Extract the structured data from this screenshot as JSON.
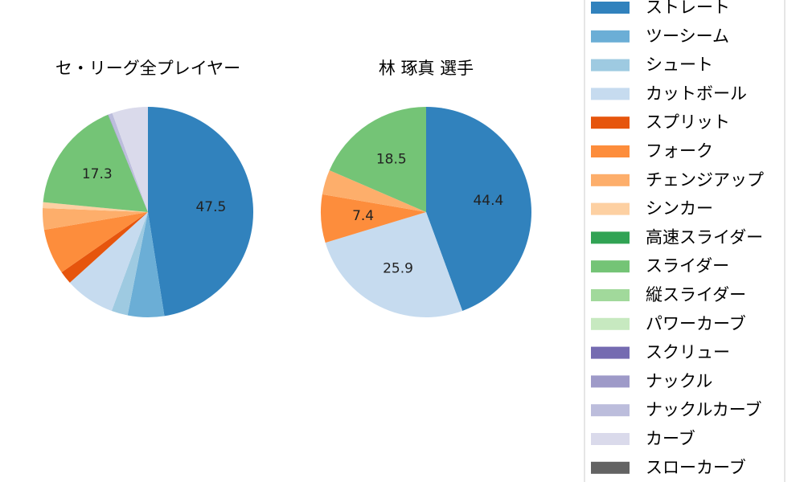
{
  "chart_data": {
    "type": "pie",
    "legend": {
      "placement": "right",
      "entries": [
        {
          "name": "ストレート",
          "color": "#3182bd"
        },
        {
          "name": "ツーシーム",
          "color": "#6baed6"
        },
        {
          "name": "シュート",
          "color": "#9ecae1"
        },
        {
          "name": "カットボール",
          "color": "#c6dbef"
        },
        {
          "name": "スプリット",
          "color": "#e6550d"
        },
        {
          "name": "フォーク",
          "color": "#fd8d3c"
        },
        {
          "name": "チェンジアップ",
          "color": "#fdae6b"
        },
        {
          "name": "シンカー",
          "color": "#fdd0a2"
        },
        {
          "name": "高速スライダー",
          "color": "#31a354"
        },
        {
          "name": "スライダー",
          "color": "#74c476"
        },
        {
          "name": "縦スライダー",
          "color": "#a1d99b"
        },
        {
          "name": "パワーカーブ",
          "color": "#c7e9c0"
        },
        {
          "name": "スクリュー",
          "color": "#756bb1"
        },
        {
          "name": "ナックル",
          "color": "#9e9ac8"
        },
        {
          "name": "ナックルカーブ",
          "color": "#bcbddc"
        },
        {
          "name": "カーブ",
          "color": "#dadaeb"
        },
        {
          "name": "スローカーブ",
          "color": "#636363"
        }
      ]
    },
    "pies": [
      {
        "title": "セ・リーグ全プレイヤー",
        "slices": [
          {
            "name": "ストレート",
            "value": 47.5,
            "label": "47.5"
          },
          {
            "name": "ツーシーム",
            "value": 5.6,
            "label": ""
          },
          {
            "name": "シュート",
            "value": 2.5,
            "label": ""
          },
          {
            "name": "カットボール",
            "value": 7.7,
            "label": ""
          },
          {
            "name": "スプリット",
            "value": 2.0,
            "label": ""
          },
          {
            "name": "フォーク",
            "value": 7.0,
            "label": ""
          },
          {
            "name": "チェンジアップ",
            "value": 3.3,
            "label": ""
          },
          {
            "name": "シンカー",
            "value": 0.9,
            "label": ""
          },
          {
            "name": "高速スライダー",
            "value": 0.0,
            "label": ""
          },
          {
            "name": "スライダー",
            "value": 17.3,
            "label": "17.3"
          },
          {
            "name": "縦スライダー",
            "value": 0.0,
            "label": ""
          },
          {
            "name": "パワーカーブ",
            "value": 0.0,
            "label": ""
          },
          {
            "name": "スクリュー",
            "value": 0.0,
            "label": ""
          },
          {
            "name": "ナックル",
            "value": 0.1,
            "label": ""
          },
          {
            "name": "ナックルカーブ",
            "value": 0.6,
            "label": ""
          },
          {
            "name": "カーブ",
            "value": 5.5,
            "label": ""
          },
          {
            "name": "スローカーブ",
            "value": 0.0,
            "label": ""
          }
        ]
      },
      {
        "title": "林 琢真  選手",
        "slices": [
          {
            "name": "ストレート",
            "value": 44.4,
            "label": "44.4"
          },
          {
            "name": "カットボール",
            "value": 25.9,
            "label": "25.9"
          },
          {
            "name": "フォーク",
            "value": 7.4,
            "label": "7.4"
          },
          {
            "name": "チェンジアップ",
            "value": 3.8,
            "label": ""
          },
          {
            "name": "スライダー",
            "value": 18.5,
            "label": "18.5"
          }
        ]
      }
    ]
  }
}
